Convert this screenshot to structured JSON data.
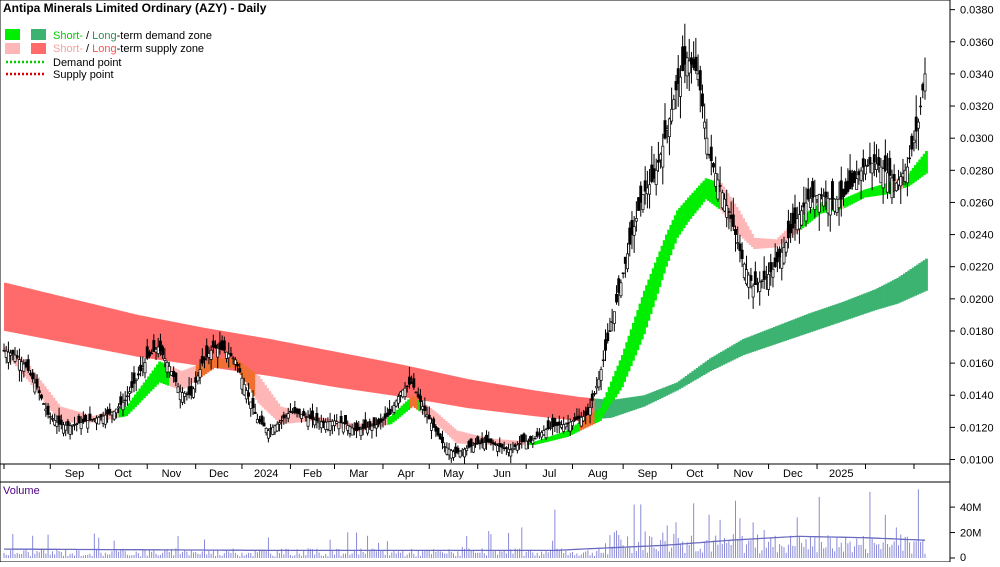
{
  "title": "Antipa Minerals Limited Ordinary (AZY) - Daily",
  "legend": {
    "row1_short": "Short-",
    "row1_mid": " / ",
    "row1_long": "Long",
    "row1_rest": "-term demand zone",
    "row2_short": "Short-",
    "row2_mid": " / ",
    "row2_long": "Long",
    "row2_rest": "-term supply zone",
    "row3": "Demand point",
    "row4": "Supply point"
  },
  "colors": {
    "short_demand": "#00ee00",
    "long_demand": "#3cb371",
    "short_supply": "#ffb6b6",
    "long_supply": "#ff6b6b",
    "overlap": "#f07030",
    "volume": "#8a8ad8",
    "volume_avg": "#6a6ac0",
    "price": "#000000"
  },
  "chart_data": [
    {
      "type": "candlestick",
      "title": "Antipa Minerals Limited Ordinary (AZY) - Daily",
      "ylim": [
        0.0086,
        0.0386
      ],
      "y_ticks": [
        "0.0100",
        "0.0120",
        "0.0140",
        "0.0160",
        "0.0180",
        "0.0200",
        "0.0220",
        "0.0240",
        "0.0260",
        "0.0280",
        "0.0300",
        "0.0320",
        "0.0340",
        "0.0360",
        "0.0380"
      ],
      "x_ticks": [
        "Sep",
        "Oct",
        "Nov",
        "Dec",
        "2024",
        "Feb",
        "Mar",
        "Apr",
        "May",
        "Jun",
        "Jul",
        "Aug",
        "Sep",
        "Oct",
        "Nov",
        "Dec",
        "2025"
      ],
      "price_path": [
        [
          0,
          0.0168
        ],
        [
          5,
          0.0165
        ],
        [
          10,
          0.0158
        ],
        [
          15,
          0.0145
        ],
        [
          20,
          0.0128
        ],
        [
          25,
          0.0122
        ],
        [
          30,
          0.0121
        ],
        [
          35,
          0.0123
        ],
        [
          40,
          0.0125
        ],
        [
          45,
          0.0127
        ],
        [
          50,
          0.013
        ],
        [
          55,
          0.0137
        ],
        [
          60,
          0.015
        ],
        [
          65,
          0.0163
        ],
        [
          70,
          0.017
        ],
        [
          75,
          0.0158
        ],
        [
          80,
          0.0142
        ],
        [
          85,
          0.014
        ],
        [
          90,
          0.016
        ],
        [
          95,
          0.017
        ],
        [
          100,
          0.0168
        ],
        [
          105,
          0.0162
        ],
        [
          110,
          0.0143
        ],
        [
          115,
          0.0125
        ],
        [
          120,
          0.0118
        ],
        [
          125,
          0.0123
        ],
        [
          130,
          0.013
        ],
        [
          135,
          0.0128
        ],
        [
          140,
          0.0125
        ],
        [
          145,
          0.0123
        ],
        [
          150,
          0.0124
        ],
        [
          155,
          0.0122
        ],
        [
          160,
          0.0118
        ],
        [
          165,
          0.012
        ],
        [
          170,
          0.0122
        ],
        [
          175,
          0.0128
        ],
        [
          180,
          0.0142
        ],
        [
          185,
          0.0148
        ],
        [
          190,
          0.0133
        ],
        [
          195,
          0.012
        ],
        [
          200,
          0.0108
        ],
        [
          205,
          0.0104
        ],
        [
          210,
          0.0107
        ],
        [
          215,
          0.011
        ],
        [
          220,
          0.0111
        ],
        [
          225,
          0.0108
        ],
        [
          230,
          0.0106
        ],
        [
          235,
          0.0111
        ],
        [
          240,
          0.0112
        ],
        [
          245,
          0.0118
        ],
        [
          250,
          0.0121
        ],
        [
          255,
          0.0122
        ],
        [
          260,
          0.0125
        ],
        [
          265,
          0.0128
        ],
        [
          270,
          0.015
        ],
        [
          275,
          0.018
        ],
        [
          280,
          0.021
        ],
        [
          285,
          0.024
        ],
        [
          290,
          0.0265
        ],
        [
          295,
          0.0275
        ],
        [
          300,
          0.03
        ],
        [
          305,
          0.033
        ],
        [
          310,
          0.035
        ],
        [
          315,
          0.034
        ],
        [
          320,
          0.029
        ],
        [
          325,
          0.027
        ],
        [
          330,
          0.025
        ],
        [
          335,
          0.0225
        ],
        [
          340,
          0.0208
        ],
        [
          345,
          0.0212
        ],
        [
          350,
          0.022
        ],
        [
          355,
          0.0235
        ],
        [
          360,
          0.025
        ],
        [
          365,
          0.0262
        ],
        [
          370,
          0.0265
        ],
        [
          375,
          0.0262
        ],
        [
          380,
          0.0262
        ],
        [
          385,
          0.027
        ],
        [
          390,
          0.0282
        ],
        [
          395,
          0.0285
        ],
        [
          400,
          0.028
        ],
        [
          405,
          0.0272
        ],
        [
          410,
          0.0282
        ],
        [
          415,
          0.031
        ],
        [
          418,
          0.034
        ]
      ],
      "long_zone": [
        [
          0,
          0.021,
          0.018
        ],
        [
          30,
          0.02,
          0.0172
        ],
        [
          60,
          0.019,
          0.0164
        ],
        [
          90,
          0.0182,
          0.0158
        ],
        [
          120,
          0.0175,
          0.0152
        ],
        [
          150,
          0.0167,
          0.0145
        ],
        [
          180,
          0.0159,
          0.0139
        ],
        [
          210,
          0.015,
          0.0132
        ],
        [
          240,
          0.0143,
          0.0127
        ],
        [
          260,
          0.0139,
          0.0124
        ],
        [
          275,
          0.0137,
          0.0126
        ],
        [
          290,
          0.014,
          0.0133
        ],
        [
          305,
          0.0148,
          0.0143
        ],
        [
          320,
          0.0163,
          0.0155
        ],
        [
          335,
          0.0175,
          0.0165
        ],
        [
          350,
          0.0183,
          0.0172
        ],
        [
          365,
          0.0191,
          0.0179
        ],
        [
          380,
          0.0198,
          0.0186
        ],
        [
          395,
          0.0206,
          0.0193
        ],
        [
          405,
          0.0213,
          0.0197
        ],
        [
          418,
          0.0225,
          0.0205
        ]
      ],
      "short_zone": [
        [
          0,
          0.017,
          0.0166
        ],
        [
          10,
          0.016,
          0.015
        ],
        [
          25,
          0.0133,
          0.0123
        ],
        [
          40,
          0.0127,
          0.0123
        ],
        [
          55,
          0.0133,
          0.0127
        ],
        [
          70,
          0.0161,
          0.0148
        ],
        [
          80,
          0.0155,
          0.0143
        ],
        [
          95,
          0.0163,
          0.0157
        ],
        [
          105,
          0.0163,
          0.0157
        ],
        [
          115,
          0.0152,
          0.0135
        ],
        [
          125,
          0.0133,
          0.0122
        ],
        [
          140,
          0.0127,
          0.0124
        ],
        [
          160,
          0.0122,
          0.0117
        ],
        [
          175,
          0.0127,
          0.0122
        ],
        [
          185,
          0.014,
          0.0133
        ],
        [
          195,
          0.013,
          0.0123
        ],
        [
          205,
          0.0118,
          0.011
        ],
        [
          220,
          0.0113,
          0.0109
        ],
        [
          240,
          0.0111,
          0.0109
        ],
        [
          255,
          0.0118,
          0.0114
        ],
        [
          270,
          0.0132,
          0.0124
        ],
        [
          280,
          0.0165,
          0.0145
        ],
        [
          290,
          0.0205,
          0.0178
        ],
        [
          300,
          0.024,
          0.022
        ],
        [
          305,
          0.0255,
          0.0238
        ],
        [
          310,
          0.0263,
          0.0248
        ],
        [
          318,
          0.0275,
          0.0262
        ],
        [
          325,
          0.0272,
          0.0255
        ],
        [
          333,
          0.0255,
          0.024
        ],
        [
          340,
          0.0238,
          0.0231
        ],
        [
          350,
          0.0237,
          0.0232
        ],
        [
          360,
          0.025,
          0.0242
        ],
        [
          370,
          0.026,
          0.0253
        ],
        [
          380,
          0.0262,
          0.0256
        ],
        [
          390,
          0.0268,
          0.0263
        ],
        [
          400,
          0.0272,
          0.0265
        ],
        [
          410,
          0.0278,
          0.027
        ],
        [
          418,
          0.0292,
          0.0278
        ]
      ]
    },
    {
      "type": "bar",
      "title": "Volume",
      "ylim": [
        0,
        55
      ],
      "y_ticks": [
        "0",
        "20M",
        "40M"
      ],
      "spikes": [
        [
          160,
          20
        ],
        [
          170,
          12
        ],
        [
          235,
          24
        ],
        [
          250,
          38
        ],
        [
          305,
          28
        ],
        [
          313,
          43
        ],
        [
          320,
          34
        ],
        [
          325,
          30
        ],
        [
          332,
          45
        ],
        [
          340,
          28
        ],
        [
          345,
          22
        ],
        [
          360,
          32
        ],
        [
          370,
          48
        ],
        [
          378,
          16
        ],
        [
          393,
          52
        ],
        [
          400,
          34
        ],
        [
          405,
          24
        ],
        [
          415,
          54
        ]
      ],
      "avg_path": [
        [
          0,
          7
        ],
        [
          120,
          6
        ],
        [
          250,
          6
        ],
        [
          300,
          10
        ],
        [
          330,
          14
        ],
        [
          360,
          17
        ],
        [
          390,
          16
        ],
        [
          418,
          14
        ]
      ]
    }
  ]
}
